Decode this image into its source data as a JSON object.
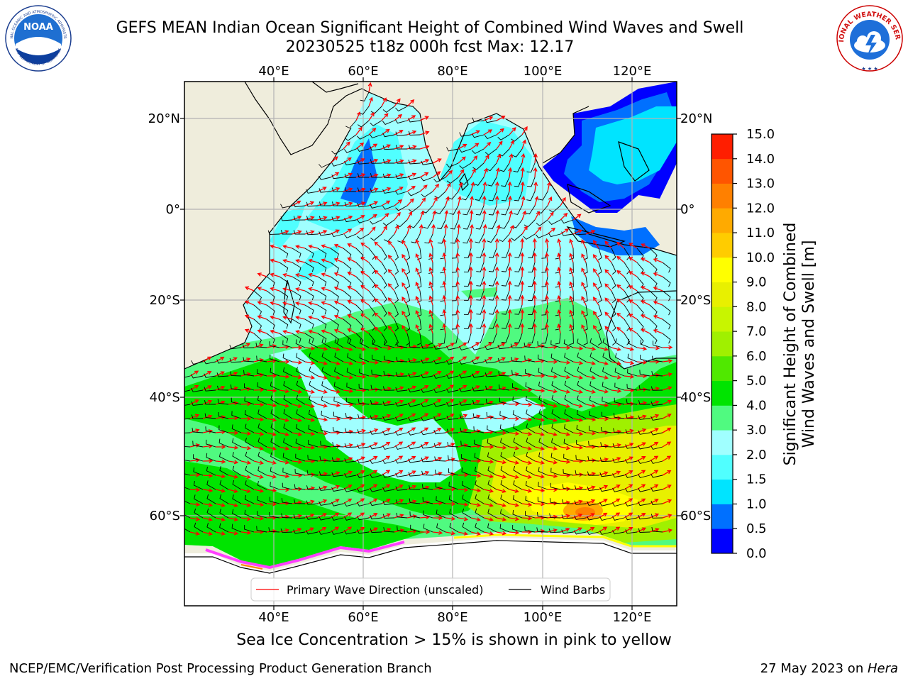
{
  "header": {
    "title_line1": "GEFS MEAN Indian Ocean Significant Height of Combined Wind Waves and Swell",
    "title_line2": "20230525 t18z 000h fcst   Max: 12.17",
    "noaa_logo": {
      "main_text": "NOAA",
      "ring_text": "NATIONAL OCEANIC AND ATMOSPHERIC ADMINISTRATION",
      "bottom_text": "U.S. DEPARTMENT OF COMMERCE"
    },
    "nws_logo": {
      "ring_text": "NATIONAL WEATHER SERVICE"
    }
  },
  "map": {
    "lon_labels_top": [
      "40°E",
      "60°E",
      "80°E",
      "100°E",
      "120°E"
    ],
    "lon_labels_bottom": [
      "40°E",
      "60°E",
      "80°E",
      "100°E",
      "120°E"
    ],
    "lat_labels_left": [
      "20°N",
      "0°",
      "20°S",
      "40°S",
      "60°S"
    ],
    "lat_labels_right": [
      "20°N",
      "0°",
      "20°S",
      "40°S",
      "60°S"
    ],
    "colors": {
      "land": "#efeddc",
      "ocean_low": "#a0ffff",
      "ice_pink": "#ff40ff"
    },
    "legend": {
      "wave_label": "Primary Wave Direction (unscaled)",
      "wave_color": "#ff0000",
      "barb_label": "Wind Barbs",
      "barb_color": "#000000"
    }
  },
  "colorbar": {
    "label_line1": "Significant Height of Combined",
    "label_line2": "Wind Waves and Swell [m]",
    "ticks": [
      "0.0",
      "0.5",
      "1.0",
      "1.5",
      "2.0",
      "3.0",
      "4.0",
      "5.0",
      "6.0",
      "7.0",
      "8.0",
      "9.0",
      "10.0",
      "11.0",
      "12.0",
      "13.0",
      "14.0",
      "15.0"
    ],
    "colors": [
      "#0000ff",
      "#0070ff",
      "#00e4ff",
      "#50ffff",
      "#a0ffff",
      "#50fa80",
      "#00e400",
      "#50e800",
      "#a0f000",
      "#c8f500",
      "#e8f000",
      "#ffff00",
      "#ffcc00",
      "#ffaa00",
      "#ff8000",
      "#ff5500",
      "#ff1e00"
    ]
  },
  "footer": {
    "note": "Sea Ice Concentration > 15% is shown in pink to yellow",
    "credit_left": "NCEP/EMC/Verification Post Processing Product Generation Branch",
    "credit_right_prefix": "27 May 2023 on ",
    "credit_right_host": "Hera"
  }
}
